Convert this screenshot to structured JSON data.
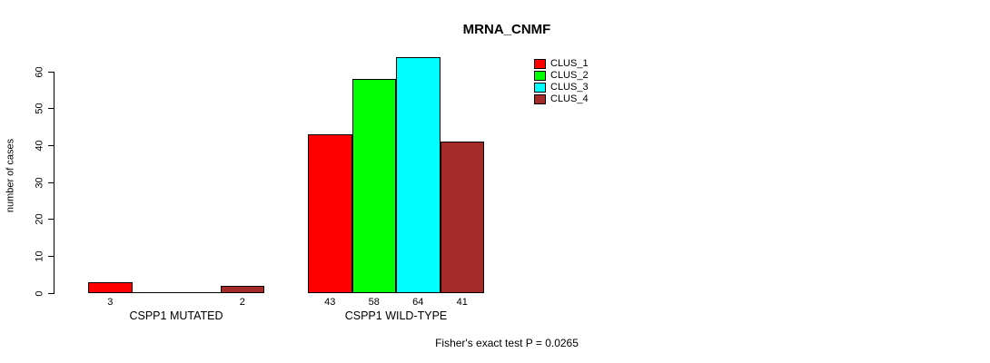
{
  "title": "MRNA_CNMF",
  "ylabel": "number of cases",
  "footer": "Fisher's exact test P = 0.0265",
  "chart_data": {
    "type": "bar",
    "groups": [
      "CSPP1 MUTATED",
      "CSPP1 WILD-TYPE"
    ],
    "series": [
      {
        "name": "CLUS_1",
        "color": "#FF0000",
        "values": [
          3,
          43
        ]
      },
      {
        "name": "CLUS_2",
        "color": "#00FF00",
        "values": [
          0,
          58
        ]
      },
      {
        "name": "CLUS_3",
        "color": "#00FFFF",
        "values": [
          0,
          64
        ]
      },
      {
        "name": "CLUS_4",
        "color": "#A52A2A",
        "values": [
          2,
          41
        ]
      }
    ],
    "bar_labels": [
      [
        "3",
        "",
        "",
        "2"
      ],
      [
        "43",
        "58",
        "64",
        "41"
      ]
    ],
    "yticks": [
      0,
      10,
      20,
      30,
      40,
      50,
      60
    ],
    "ylim": [
      0,
      64
    ],
    "grid": false,
    "legend_position": "top-right"
  }
}
